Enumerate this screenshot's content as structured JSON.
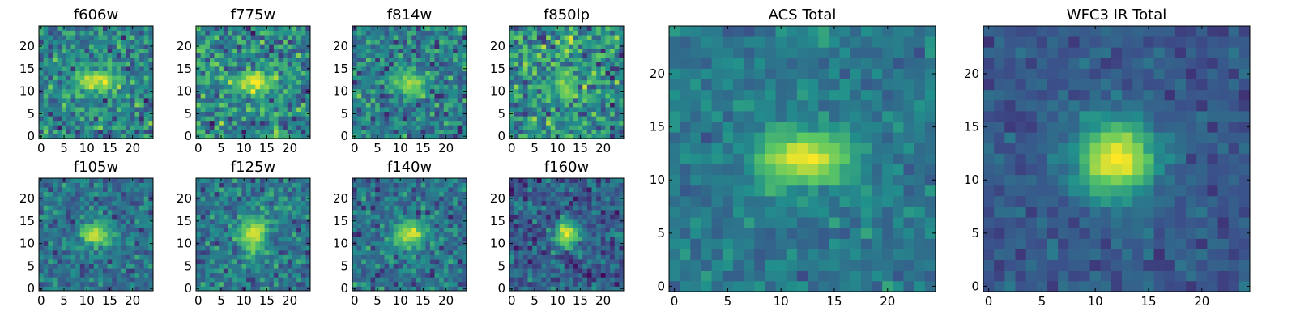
{
  "colormap": [
    "#440154",
    "#3b528b",
    "#21918c",
    "#5ec962",
    "#fde725"
  ],
  "chart_data": [
    {
      "type": "heatmap",
      "title": "f606w",
      "xlim": [
        -0.5,
        24.5
      ],
      "ylim": [
        -0.5,
        24.5
      ],
      "xticks": [
        0,
        5,
        10,
        15,
        20
      ],
      "yticks": [
        0,
        5,
        10,
        15,
        20
      ],
      "peak": [
        12,
        12
      ],
      "sigma": [
        3.2,
        1.6
      ],
      "peak_intensity": 0.95,
      "background": 0.45,
      "noise": 0.2
    },
    {
      "type": "heatmap",
      "title": "f775w",
      "xlim": [
        -0.5,
        24.5
      ],
      "ylim": [
        -0.5,
        24.5
      ],
      "xticks": [
        0,
        5,
        10,
        15,
        20
      ],
      "yticks": [
        0,
        5,
        10,
        15,
        20
      ],
      "peak": [
        12,
        12
      ],
      "sigma": [
        3.0,
        1.8
      ],
      "peak_intensity": 0.95,
      "background": 0.47,
      "noise": 0.22
    },
    {
      "type": "heatmap",
      "title": "f814w",
      "xlim": [
        -0.5,
        24.5
      ],
      "ylim": [
        -0.5,
        24.5
      ],
      "xticks": [
        0,
        5,
        10,
        15,
        20
      ],
      "yticks": [
        0,
        5,
        10,
        15,
        20
      ],
      "peak": [
        12,
        12
      ],
      "sigma": [
        2.6,
        1.8
      ],
      "peak_intensity": 0.85,
      "background": 0.42,
      "noise": 0.2
    },
    {
      "type": "heatmap",
      "title": "f850lp",
      "xlim": [
        -0.5,
        24.5
      ],
      "ylim": [
        -0.5,
        24.5
      ],
      "xticks": [
        0,
        5,
        10,
        15,
        20
      ],
      "yticks": [
        0,
        5,
        10,
        15,
        20
      ],
      "peak": [
        11,
        12
      ],
      "sigma": [
        2.2,
        2.2
      ],
      "peak_intensity": 0.8,
      "background": 0.5,
      "noise": 0.25
    },
    {
      "type": "heatmap",
      "title": "f105w",
      "xlim": [
        -0.5,
        24.5
      ],
      "ylim": [
        -0.5,
        24.5
      ],
      "xticks": [
        0,
        5,
        10,
        15,
        20
      ],
      "yticks": [
        0,
        5,
        10,
        15,
        20
      ],
      "peak": [
        12,
        12
      ],
      "sigma": [
        2.3,
        2.0
      ],
      "peak_intensity": 0.92,
      "background": 0.38,
      "noise": 0.15
    },
    {
      "type": "heatmap",
      "title": "f125w",
      "xlim": [
        -0.5,
        24.5
      ],
      "ylim": [
        -0.5,
        24.5
      ],
      "xticks": [
        0,
        5,
        10,
        15,
        20
      ],
      "yticks": [
        0,
        5,
        10,
        15,
        20
      ],
      "peak": [
        12,
        12
      ],
      "sigma": [
        2.2,
        2.6
      ],
      "peak_intensity": 0.95,
      "background": 0.4,
      "noise": 0.16
    },
    {
      "type": "heatmap",
      "title": "f140w",
      "xlim": [
        -0.5,
        24.5
      ],
      "ylim": [
        -0.5,
        24.5
      ],
      "xticks": [
        0,
        5,
        10,
        15,
        20
      ],
      "yticks": [
        0,
        5,
        10,
        15,
        20
      ],
      "peak": [
        12,
        12
      ],
      "sigma": [
        2.4,
        2.0
      ],
      "peak_intensity": 0.95,
      "background": 0.38,
      "noise": 0.16
    },
    {
      "type": "heatmap",
      "title": "f160w",
      "xlim": [
        -0.5,
        24.5
      ],
      "ylim": [
        -0.5,
        24.5
      ],
      "xticks": [
        0,
        5,
        10,
        15,
        20
      ],
      "yticks": [
        0,
        5,
        10,
        15,
        20
      ],
      "peak": [
        12,
        12
      ],
      "sigma": [
        2.0,
        2.0
      ],
      "peak_intensity": 0.95,
      "background": 0.3,
      "noise": 0.15
    },
    {
      "type": "heatmap",
      "title": "ACS Total",
      "xlim": [
        -0.5,
        24.5
      ],
      "ylim": [
        -0.5,
        24.5
      ],
      "xticks": [
        0,
        5,
        10,
        15,
        20
      ],
      "yticks": [
        0,
        5,
        10,
        15,
        20
      ],
      "peak": [
        12,
        12
      ],
      "sigma": [
        3.0,
        1.8
      ],
      "peak_intensity": 1.0,
      "background": 0.4,
      "noise": 0.1
    },
    {
      "type": "heatmap",
      "title": "WFC3 IR Total",
      "xlim": [
        -0.5,
        24.5
      ],
      "ylim": [
        -0.5,
        24.5
      ],
      "xticks": [
        0,
        5,
        10,
        15,
        20
      ],
      "yticks": [
        0,
        5,
        10,
        15,
        20
      ],
      "peak": [
        12,
        12
      ],
      "sigma": [
        2.6,
        2.6
      ],
      "peak_intensity": 1.0,
      "background": 0.28,
      "noise": 0.08
    }
  ]
}
